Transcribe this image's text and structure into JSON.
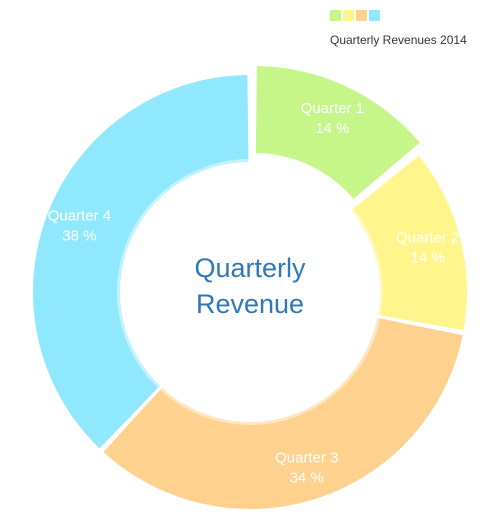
{
  "chart_data": {
    "type": "pie",
    "subtype": "donut",
    "title": "Quarterly Revenue",
    "legend_title": "Quarterly Revenues 2014",
    "legend_position": "top-right",
    "categories": [
      "Quarter 1",
      "Quarter 2",
      "Quarter 3",
      "Quarter 4"
    ],
    "values": [
      14,
      14,
      34,
      38
    ],
    "value_labels": [
      "14 %",
      "14 %",
      "34 %",
      "38 %"
    ],
    "unit": "%",
    "colors": [
      "#c6f68a",
      "#fff58c",
      "#fed18f",
      "#8fe8fe"
    ],
    "exploded": [
      "Quarter 1"
    ]
  },
  "center": {
    "line1": "Quarterly",
    "line2": "Revenue"
  }
}
